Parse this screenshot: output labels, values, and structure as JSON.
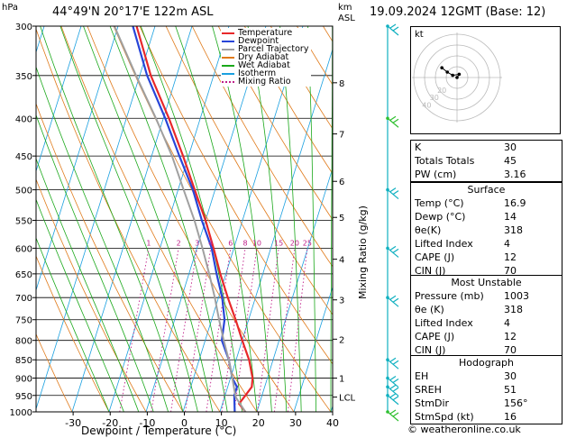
{
  "header": {
    "location": "44°49'N  20°17'E  122m  ASL",
    "datetime": "19.09.2024  12GMT  (Base: 12)",
    "hpa_unit": "hPa",
    "km_unit_line1": "km",
    "km_unit_line2": "ASL",
    "copyright": "© weatheronline.co.uk"
  },
  "colors": {
    "temperature": "#e8282a",
    "dewpoint": "#2845d8",
    "parcel": "#a0a0a0",
    "dry_adiabat": "#e07a1a",
    "wet_adiabat": "#1aa81a",
    "isotherm": "#1aa0e0",
    "mixing_ratio": "#c0208a",
    "wind": "#10b0c0",
    "wind_low": "#30c030"
  },
  "legend": [
    {
      "label": "Temperature",
      "key": "temperature",
      "style": "solid"
    },
    {
      "label": "Dewpoint",
      "key": "dewpoint",
      "style": "solid"
    },
    {
      "label": "Parcel Trajectory",
      "key": "parcel",
      "style": "solid"
    },
    {
      "label": "Dry Adiabat",
      "key": "dry_adiabat",
      "style": "solid"
    },
    {
      "label": "Wet Adiabat",
      "key": "wet_adiabat",
      "style": "solid"
    },
    {
      "label": "Isotherm",
      "key": "isotherm",
      "style": "solid"
    },
    {
      "label": "Mixing Ratio",
      "key": "mixing_ratio",
      "style": "dotted"
    }
  ],
  "chart_data": {
    "type": "line",
    "xlabel": "Dewpoint / Temperature (°C)",
    "ylabel_right": "Mixing Ratio (g/kg)",
    "pressure_levels": [
      300,
      350,
      400,
      450,
      500,
      550,
      600,
      650,
      700,
      750,
      800,
      850,
      900,
      950,
      1000
    ],
    "x_ticks": [
      -30,
      -20,
      -10,
      0,
      10,
      20,
      30,
      40
    ],
    "xlim": [
      -40,
      40
    ],
    "ylim": [
      1000,
      300
    ],
    "y_scale": "log",
    "km_levels": [
      {
        "label": "8",
        "p": 358
      },
      {
        "label": "7",
        "p": 420
      },
      {
        "label": "6",
        "p": 487
      },
      {
        "label": "5",
        "p": 545
      },
      {
        "label": "4",
        "p": 621
      },
      {
        "label": "3",
        "p": 705
      },
      {
        "label": "2",
        "p": 797
      },
      {
        "label": "1",
        "p": 900
      },
      {
        "label": "LCL",
        "p": 955
      }
    ],
    "mixing_ratio_labels": [
      "1",
      "2",
      "3",
      "4",
      "6",
      "8",
      "10",
      "15",
      "20",
      "25"
    ],
    "series": [
      {
        "name": "Temperature",
        "key": "temperature",
        "points": [
          [
            1000,
            16.9
          ],
          [
            975,
            14.5
          ],
          [
            950,
            15.5
          ],
          [
            925,
            16.5
          ],
          [
            900,
            16.0
          ],
          [
            850,
            13.5
          ],
          [
            800,
            10.0
          ],
          [
            750,
            6.5
          ],
          [
            700,
            2.5
          ],
          [
            650,
            -1.5
          ],
          [
            600,
            -5.5
          ],
          [
            550,
            -10.0
          ],
          [
            500,
            -15.5
          ],
          [
            450,
            -21.5
          ],
          [
            400,
            -28.5
          ],
          [
            350,
            -37.0
          ],
          [
            300,
            -45.0
          ]
        ]
      },
      {
        "name": "Dewpoint",
        "key": "dewpoint",
        "points": [
          [
            1000,
            14.0
          ],
          [
            950,
            12.5
          ],
          [
            925,
            12.5
          ],
          [
            900,
            10.5
          ],
          [
            850,
            8.0
          ],
          [
            800,
            4.5
          ],
          [
            750,
            3.5
          ],
          [
            700,
            1.0
          ],
          [
            650,
            -2.5
          ],
          [
            600,
            -6.0
          ],
          [
            550,
            -11.0
          ],
          [
            500,
            -16.0
          ],
          [
            450,
            -22.5
          ],
          [
            400,
            -29.5
          ],
          [
            350,
            -38.0
          ],
          [
            300,
            -46.0
          ]
        ]
      },
      {
        "name": "Parcel Trajectory",
        "key": "parcel",
        "points": [
          [
            1000,
            16.9
          ],
          [
            955,
            13.0
          ],
          [
            900,
            10.5
          ],
          [
            850,
            8.0
          ],
          [
            800,
            5.0
          ],
          [
            750,
            2.0
          ],
          [
            700,
            -1.0
          ],
          [
            650,
            -4.5
          ],
          [
            600,
            -8.5
          ],
          [
            550,
            -13.0
          ],
          [
            500,
            -18.5
          ],
          [
            450,
            -24.5
          ],
          [
            400,
            -32.0
          ],
          [
            350,
            -41.0
          ],
          [
            300,
            -51.0
          ]
        ]
      }
    ],
    "wind_barbs": [
      {
        "p": 300,
        "color_key": "wind"
      },
      {
        "p": 400,
        "color_key": "wind_low"
      },
      {
        "p": 500,
        "color_key": "wind"
      },
      {
        "p": 600,
        "color_key": "wind"
      },
      {
        "p": 700,
        "color_key": "wind"
      },
      {
        "p": 850,
        "color_key": "wind"
      },
      {
        "p": 900,
        "color_key": "wind"
      },
      {
        "p": 925,
        "color_key": "wind"
      },
      {
        "p": 950,
        "color_key": "wind"
      },
      {
        "p": 1000,
        "color_key": "wind_low"
      }
    ]
  },
  "hodograph": {
    "label": "kt",
    "rings": [
      "10",
      "20",
      "30",
      "40"
    ],
    "points_kt": [
      [
        0,
        0
      ],
      [
        2,
        3
      ],
      [
        -4,
        2
      ],
      [
        -9,
        5
      ],
      [
        -14,
        9
      ]
    ]
  },
  "indices": {
    "top": [
      {
        "label": "K",
        "value": "30"
      },
      {
        "label": "Totals Totals",
        "value": "45"
      },
      {
        "label": "PW (cm)",
        "value": "3.16"
      }
    ],
    "surface_title": "Surface",
    "surface": [
      {
        "label": "Temp (°C)",
        "value": "16.9"
      },
      {
        "label": "Dewp (°C)",
        "value": "14"
      },
      {
        "label": "θe(K)",
        "value": "318"
      },
      {
        "label": "Lifted Index",
        "value": "4"
      },
      {
        "label": "CAPE (J)",
        "value": "12"
      },
      {
        "label": "CIN (J)",
        "value": "70"
      }
    ],
    "unstable_title": "Most Unstable",
    "unstable": [
      {
        "label": "Pressure (mb)",
        "value": "1003"
      },
      {
        "label": "θe (K)",
        "value": "318"
      },
      {
        "label": "Lifted Index",
        "value": "4"
      },
      {
        "label": "CAPE (J)",
        "value": "12"
      },
      {
        "label": "CIN (J)",
        "value": "70"
      }
    ],
    "hodo_title": "Hodograph",
    "hodo": [
      {
        "label": "EH",
        "value": "30"
      },
      {
        "label": "SREH",
        "value": "51"
      },
      {
        "label": "StmDir",
        "value": "156°"
      },
      {
        "label": "StmSpd (kt)",
        "value": "16"
      }
    ]
  }
}
